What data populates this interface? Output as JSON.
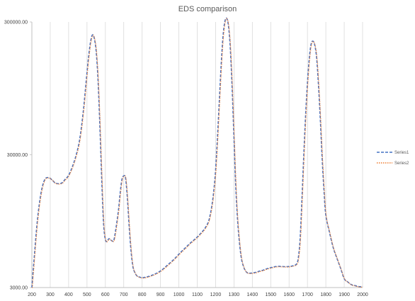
{
  "chart_data": {
    "type": "line",
    "title": "EDS comparison",
    "xlabel": "",
    "ylabel": "",
    "xlim": [
      200,
      2000
    ],
    "ylim": [
      3000,
      300000
    ],
    "y_scale": "log",
    "grid": "vertical",
    "legend_position": "right",
    "x_ticks": [
      "200",
      "300",
      "400",
      "500",
      "600",
      "700",
      "800",
      "900",
      "1000",
      "1100",
      "1200",
      "1300",
      "1400",
      "1500",
      "1600",
      "1700",
      "1800",
      "1900",
      "2000"
    ],
    "y_ticks": [
      "3000.00",
      "30000.00",
      "300000.00"
    ],
    "series": [
      {
        "name": "Series1",
        "color": "#4472C4",
        "style": "dashed",
        "x": [
          200,
          210,
          230,
          250,
          270,
          290,
          310,
          330,
          360,
          380,
          400,
          420,
          440,
          460,
          480,
          500,
          510,
          520,
          530,
          540,
          550,
          560,
          570,
          580,
          590,
          600,
          610,
          620,
          640,
          650,
          670,
          680,
          690,
          700,
          710,
          720,
          730,
          740,
          750,
          760,
          770,
          780,
          800,
          820,
          840,
          860,
          880,
          900,
          920,
          940,
          960,
          980,
          1000,
          1020,
          1040,
          1060,
          1080,
          1100,
          1120,
          1140,
          1160,
          1170,
          1180,
          1190,
          1200,
          1210,
          1220,
          1230,
          1240,
          1250,
          1260,
          1270,
          1280,
          1290,
          1300,
          1310,
          1320,
          1330,
          1340,
          1350,
          1360,
          1370,
          1380,
          1400,
          1420,
          1440,
          1460,
          1480,
          1500,
          1520,
          1540,
          1560,
          1580,
          1600,
          1620,
          1640,
          1650,
          1660,
          1670,
          1680,
          1690,
          1700,
          1710,
          1720,
          1730,
          1740,
          1750,
          1760,
          1770,
          1780,
          1790,
          1800,
          1820,
          1840,
          1860,
          1880,
          1900,
          1920,
          1940,
          1960,
          1980,
          2000
        ],
        "values": [
          3000,
          4500,
          9600,
          15500,
          19500,
          20200,
          19400,
          18300,
          18300,
          19500,
          21000,
          24300,
          29500,
          39000,
          64000,
          125000,
          170000,
          215000,
          240000,
          225000,
          180000,
          110000,
          50000,
          20000,
          9200,
          6900,
          6700,
          7000,
          6700,
          7200,
          11100,
          15200,
          19500,
          20800,
          20000,
          14000,
          8500,
          5600,
          4300,
          3900,
          3700,
          3620,
          3560,
          3590,
          3650,
          3740,
          3850,
          4000,
          4200,
          4450,
          4700,
          5000,
          5350,
          5700,
          6050,
          6450,
          6800,
          7200,
          7700,
          8300,
          9300,
          10500,
          12500,
          16000,
          23000,
          40000,
          75000,
          140000,
          230000,
          300000,
          320000,
          280000,
          190000,
          95000,
          40000,
          17000,
          9500,
          6500,
          5000,
          4400,
          4060,
          3900,
          3850,
          3860,
          3910,
          3990,
          4060,
          4160,
          4230,
          4300,
          4330,
          4320,
          4310,
          4320,
          4370,
          4500,
          5000,
          7000,
          14000,
          30000,
          60000,
          105000,
          160000,
          205000,
          215000,
          200000,
          160000,
          100000,
          55000,
          28000,
          16000,
          10500,
          7800,
          6000,
          5000,
          4200,
          3500,
          3300,
          3150,
          3100,
          3050,
          3050
        ]
      },
      {
        "name": "Series2",
        "color": "#ED7D31",
        "style": "dotted",
        "x": [
          200,
          210,
          230,
          250,
          270,
          290,
          310,
          330,
          360,
          380,
          400,
          420,
          440,
          460,
          480,
          500,
          510,
          520,
          530,
          540,
          550,
          560,
          570,
          580,
          590,
          600,
          610,
          620,
          640,
          650,
          670,
          680,
          690,
          700,
          710,
          720,
          730,
          740,
          750,
          760,
          770,
          780,
          800,
          820,
          840,
          860,
          880,
          900,
          920,
          940,
          960,
          980,
          1000,
          1020,
          1040,
          1060,
          1080,
          1100,
          1120,
          1140,
          1160,
          1170,
          1180,
          1190,
          1200,
          1210,
          1220,
          1230,
          1240,
          1250,
          1260,
          1270,
          1280,
          1290,
          1300,
          1310,
          1320,
          1330,
          1340,
          1350,
          1360,
          1370,
          1380,
          1400,
          1420,
          1440,
          1460,
          1480,
          1500,
          1520,
          1540,
          1560,
          1580,
          1600,
          1620,
          1640,
          1650,
          1660,
          1670,
          1680,
          1690,
          1700,
          1710,
          1720,
          1730,
          1740,
          1750,
          1760,
          1770,
          1780,
          1790,
          1800,
          1820,
          1840,
          1860,
          1880,
          1900,
          1920,
          1940,
          1960,
          1980,
          2000
        ],
        "values": [
          3000,
          4500,
          9600,
          15500,
          19500,
          20200,
          19400,
          18300,
          18300,
          19500,
          21000,
          24300,
          29500,
          39000,
          64000,
          125000,
          170000,
          215000,
          240000,
          225000,
          180000,
          110000,
          50000,
          20000,
          9200,
          6900,
          6700,
          7000,
          6700,
          7200,
          11100,
          15200,
          19500,
          20800,
          20000,
          14000,
          8500,
          5600,
          4300,
          3900,
          3700,
          3620,
          3560,
          3590,
          3650,
          3740,
          3850,
          4000,
          4200,
          4450,
          4700,
          5000,
          5350,
          5700,
          6050,
          6450,
          6800,
          7200,
          7700,
          8300,
          9300,
          10500,
          12500,
          16000,
          23000,
          40000,
          75000,
          140000,
          230000,
          300000,
          320000,
          280000,
          190000,
          95000,
          40000,
          17000,
          9500,
          6500,
          5000,
          4400,
          4060,
          3900,
          3850,
          3860,
          3910,
          3990,
          4060,
          4160,
          4230,
          4300,
          4330,
          4320,
          4310,
          4320,
          4370,
          4500,
          5000,
          7000,
          14000,
          30000,
          60000,
          105000,
          160000,
          205000,
          215000,
          200000,
          160000,
          100000,
          55000,
          28000,
          16000,
          10500,
          7800,
          6000,
          5000,
          4200,
          3500,
          3300,
          3150,
          3100,
          3050,
          3050
        ]
      }
    ]
  },
  "colors": {
    "grid": "#d9d9d9",
    "axis": "#bfbfbf"
  }
}
